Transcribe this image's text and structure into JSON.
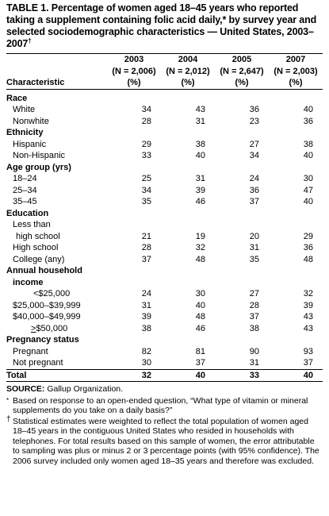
{
  "title": "TABLE 1. Percentage of women aged 18–45 years who reported taking a supplement containing folic acid daily,* by survey year and selected sociodemographic characteristics — United States, 2003–2007",
  "title_mark": "†",
  "header": {
    "characteristic": "Characteristic",
    "cols": [
      {
        "year": "2003",
        "n": "(N = 2,006)",
        "unit": "(%)"
      },
      {
        "year": "2004",
        "n": "(N = 2,012)",
        "unit": "(%)"
      },
      {
        "year": "2005",
        "n": "(N = 2,647)",
        "unit": "(%)"
      },
      {
        "year": "2007",
        "n": "(N = 2,003)",
        "unit": "(%)"
      }
    ]
  },
  "sections": {
    "race": {
      "label": "Race",
      "rows": [
        {
          "label": "White",
          "v": [
            "34",
            "43",
            "36",
            "40"
          ]
        },
        {
          "label": "Nonwhite",
          "v": [
            "28",
            "31",
            "23",
            "36"
          ]
        }
      ]
    },
    "ethnicity": {
      "label": "Ethnicity",
      "rows": [
        {
          "label": "Hispanic",
          "v": [
            "29",
            "38",
            "27",
            "38"
          ]
        },
        {
          "label": "Non-Hispanic",
          "v": [
            "33",
            "40",
            "34",
            "40"
          ]
        }
      ]
    },
    "age": {
      "label": "Age group (yrs)",
      "rows": [
        {
          "label": "18–24",
          "v": [
            "25",
            "31",
            "24",
            "30"
          ]
        },
        {
          "label": "25–34",
          "v": [
            "34",
            "39",
            "36",
            "47"
          ]
        },
        {
          "label": "35–45",
          "v": [
            "35",
            "46",
            "37",
            "40"
          ]
        }
      ]
    },
    "education": {
      "label": "Education",
      "lt_label1": "Less than",
      "lt_label2": "high school",
      "lt_v": [
        "21",
        "19",
        "20",
        "29"
      ],
      "rows": [
        {
          "label": "High school",
          "v": [
            "28",
            "32",
            "31",
            "36"
          ]
        },
        {
          "label": "College (any)",
          "v": [
            "37",
            "48",
            "35",
            "48"
          ]
        }
      ]
    },
    "income": {
      "label1": "Annual household",
      "label2": "income",
      "rows": [
        {
          "label": "<$25,000",
          "v": [
            "24",
            "30",
            "27",
            "32"
          ]
        },
        {
          "label": "$25,000–$39,999",
          "v": [
            "31",
            "40",
            "28",
            "39"
          ]
        },
        {
          "label": "$40,000–$49,999",
          "v": [
            "39",
            "48",
            "37",
            "43"
          ]
        },
        {
          "label": "$50,000",
          "prefix": ">",
          "v": [
            "38",
            "46",
            "38",
            "43"
          ]
        }
      ]
    },
    "pregnancy": {
      "label": "Pregnancy status",
      "rows": [
        {
          "label": "Pregnant",
          "v": [
            "82",
            "81",
            "90",
            "93"
          ]
        },
        {
          "label": "Not pregnant",
          "v": [
            "30",
            "37",
            "31",
            "37"
          ]
        }
      ]
    }
  },
  "total": {
    "label": "Total",
    "v": [
      "32",
      "40",
      "33",
      "40"
    ]
  },
  "footnotes": {
    "source_label": "SOURCE:",
    "source_text": "Gallup Organization.",
    "star_mark": "*",
    "star_text": "Based on response to an open-ended question, “What type of vitamin or mineral supplements do you take on a daily basis?”",
    "dagger_mark": "†",
    "dagger_text": "Statistical estimates were weighted to reflect the total population of women aged 18–45 years in the contiguous United States who resided in households with telephones. For total results based on this sample of women, the error attributable to sampling was plus or minus 2 or 3 percentage points (with 95% confidence). The 2006 survey included only women aged 18–35 years and therefore was excluded."
  }
}
